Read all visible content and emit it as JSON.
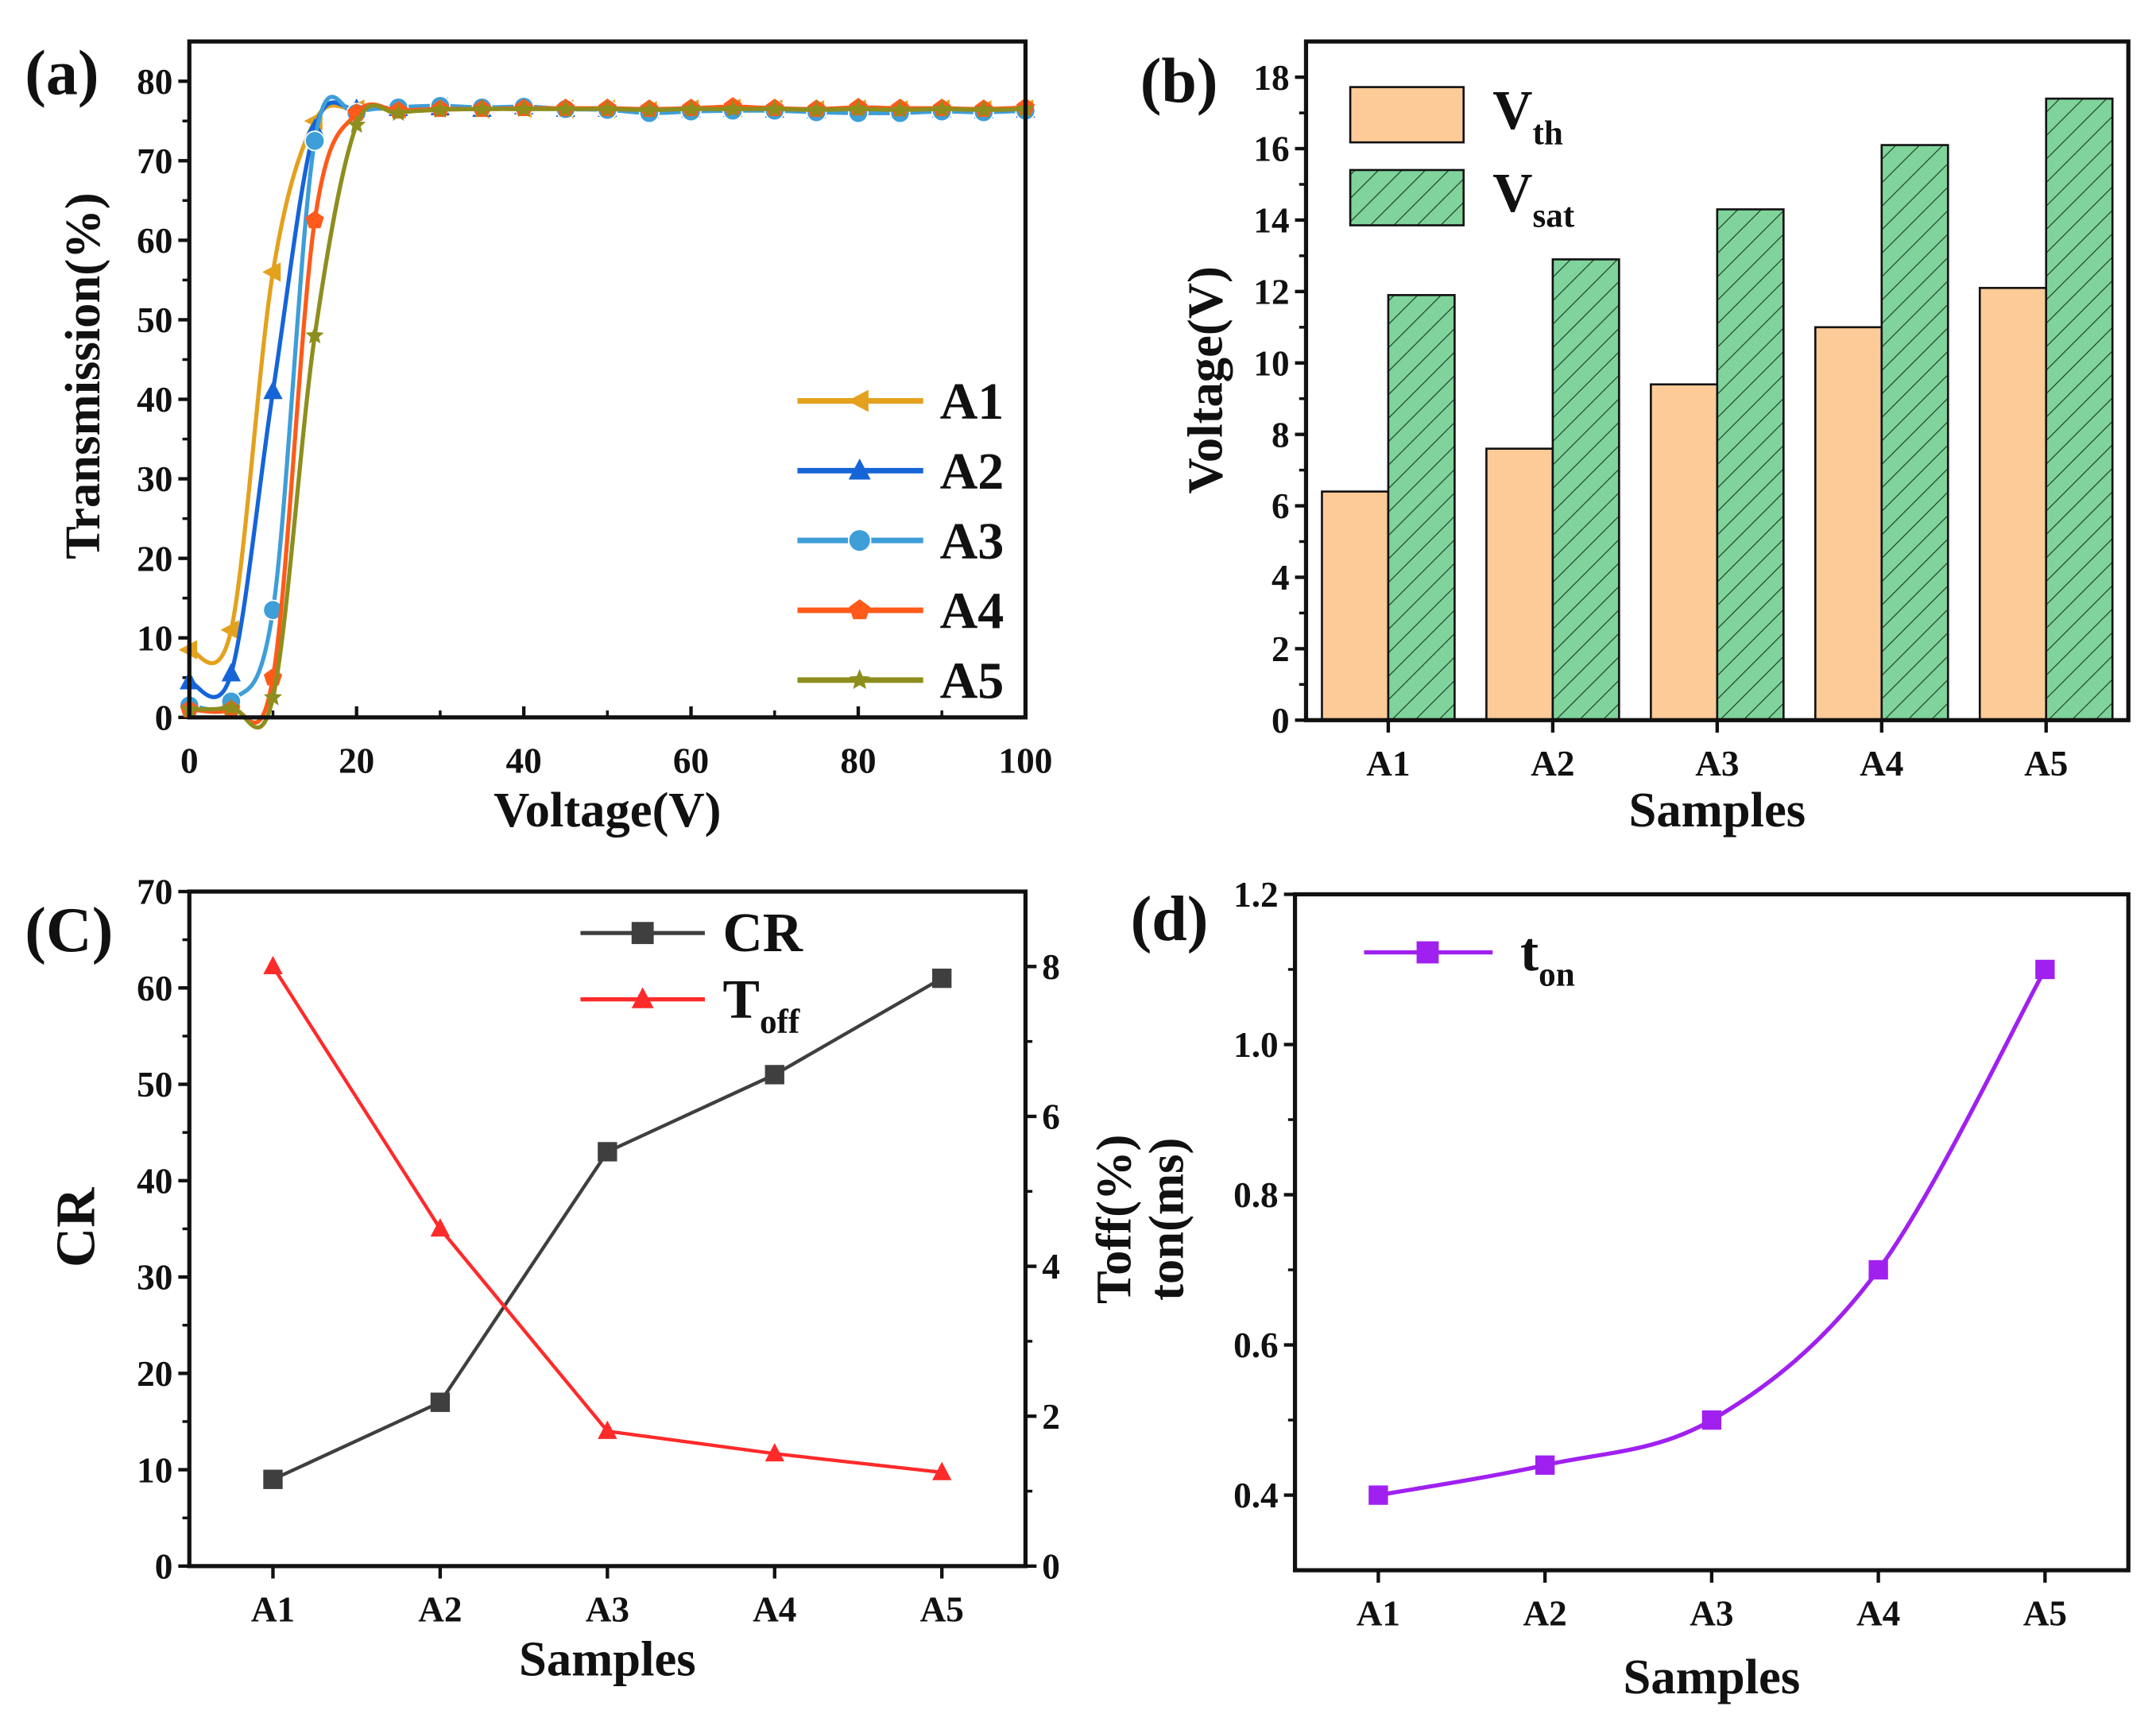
{
  "chart_data": [
    {
      "panel": "(a)",
      "type": "line",
      "xlabel": "Voltage(V)",
      "ylabel": "Transmission(%)",
      "xlim": [
        0,
        100
      ],
      "ylim": [
        0,
        85
      ],
      "xticks": [
        0,
        20,
        40,
        60,
        80,
        100
      ],
      "yticks": [
        0,
        10,
        20,
        30,
        40,
        50,
        60,
        70,
        80
      ],
      "legend_position": "bottom-right",
      "x": [
        0,
        5,
        10,
        15,
        20,
        25,
        30,
        35,
        40,
        45,
        50,
        55,
        60,
        65,
        70,
        75,
        80,
        85,
        90,
        95,
        100
      ],
      "series": [
        {
          "name": "A1",
          "color": "#E3A11E",
          "marker": "triangle-left",
          "values": [
            8.5,
            11,
            56,
            75,
            76.5,
            76.5,
            76.8,
            76.5,
            76.6,
            76.5,
            76.5,
            76.3,
            76.5,
            76.6,
            76.5,
            76.4,
            76.5,
            76.4,
            76.5,
            76.4,
            76.5
          ]
        },
        {
          "name": "A2",
          "color": "#1565D8",
          "marker": "triangle-up",
          "values": [
            4.5,
            5.5,
            41,
            74,
            76.5,
            76.6,
            76.7,
            76.5,
            76.8,
            76.5,
            76.5,
            76.3,
            76.4,
            76.5,
            76.4,
            76.3,
            76.4,
            76.3,
            76.4,
            76.3,
            76.4
          ]
        },
        {
          "name": "A3",
          "color": "#3E9ED8",
          "marker": "circle",
          "values": [
            1.5,
            2,
            13.5,
            72.5,
            76,
            76.7,
            76.9,
            76.7,
            76.8,
            76.5,
            76.4,
            76,
            76.2,
            76.3,
            76.3,
            76.1,
            76,
            76,
            76.2,
            76.1,
            76.3
          ]
        },
        {
          "name": "A4",
          "color": "#FF5A1A",
          "marker": "pentagon",
          "values": [
            1,
            1,
            5,
            62.5,
            76,
            76.3,
            76.5,
            76.5,
            76.6,
            76.6,
            76.6,
            76.5,
            76.6,
            76.8,
            76.6,
            76.5,
            76.7,
            76.6,
            76.6,
            76.5,
            76.7
          ]
        },
        {
          "name": "A5",
          "color": "#8E8E1E",
          "marker": "star",
          "values": [
            1,
            1.2,
            2.5,
            48,
            74.5,
            76,
            76.4,
            76.5,
            76.5,
            76.5,
            76.5,
            76.4,
            76.5,
            76.5,
            76.5,
            76.4,
            76.5,
            76.4,
            76.5,
            76.4,
            76.5
          ]
        }
      ]
    },
    {
      "panel": "(b)",
      "type": "bar",
      "xlabel": "Samples",
      "ylabel": "Voltage(V)",
      "ylim": [
        0,
        19
      ],
      "yticks": [
        0,
        2,
        4,
        6,
        8,
        10,
        12,
        14,
        16,
        18
      ],
      "categories": [
        "A1",
        "A2",
        "A3",
        "A4",
        "A5"
      ],
      "legend_position": "top-left",
      "series": [
        {
          "name": "V",
          "sub": "th",
          "color": "#FDCB98",
          "hatch": false,
          "values": [
            6.4,
            7.6,
            9.4,
            11.0,
            12.1
          ]
        },
        {
          "name": "V",
          "sub": "sat",
          "color": "#7FD39B",
          "hatch": true,
          "values": [
            11.9,
            12.9,
            14.3,
            16.1,
            17.4
          ]
        }
      ]
    },
    {
      "panel": "(C)",
      "type": "line",
      "xlabel": "Samples",
      "ylabel": "CR",
      "ylim": [
        0,
        70
      ],
      "yticks": [
        0,
        10,
        20,
        30,
        40,
        50,
        60,
        70
      ],
      "y2lim": [
        0,
        9
      ],
      "y2ticks": [
        0,
        2,
        4,
        6,
        8
      ],
      "categories": [
        "A1",
        "A2",
        "A3",
        "A4",
        "A5"
      ],
      "legend_position": "top-center",
      "series": [
        {
          "name": "CR",
          "sub": "",
          "color": "#3F3F3F",
          "marker": "square",
          "axis": "left",
          "values": [
            9,
            17,
            43,
            51,
            61
          ]
        },
        {
          "name": "T",
          "sub": "off",
          "color": "#FF2A2A",
          "marker": "triangle-up",
          "axis": "right",
          "values": [
            8.0,
            4.5,
            1.8,
            1.5,
            1.25
          ]
        }
      ]
    },
    {
      "panel": "(d)",
      "type": "line",
      "xlabel": "Samples",
      "ylabel": [
        "Toff(%)",
        "ton(ms)"
      ],
      "ylim": [
        0.3,
        1.2
      ],
      "yticks": [
        0.4,
        0.6,
        0.8,
        1.0,
        1.2
      ],
      "ytick_labels": [
        "0.4",
        "0.6",
        "0.8",
        "1.0",
        "1.2"
      ],
      "categories": [
        "A1",
        "A2",
        "A3",
        "A4",
        "A5"
      ],
      "legend_position": "top-left",
      "series": [
        {
          "name": "t",
          "sub": "on",
          "color": "#A020F0",
          "marker": "square",
          "values": [
            0.4,
            0.44,
            0.5,
            0.7,
            1.1
          ]
        }
      ]
    }
  ]
}
